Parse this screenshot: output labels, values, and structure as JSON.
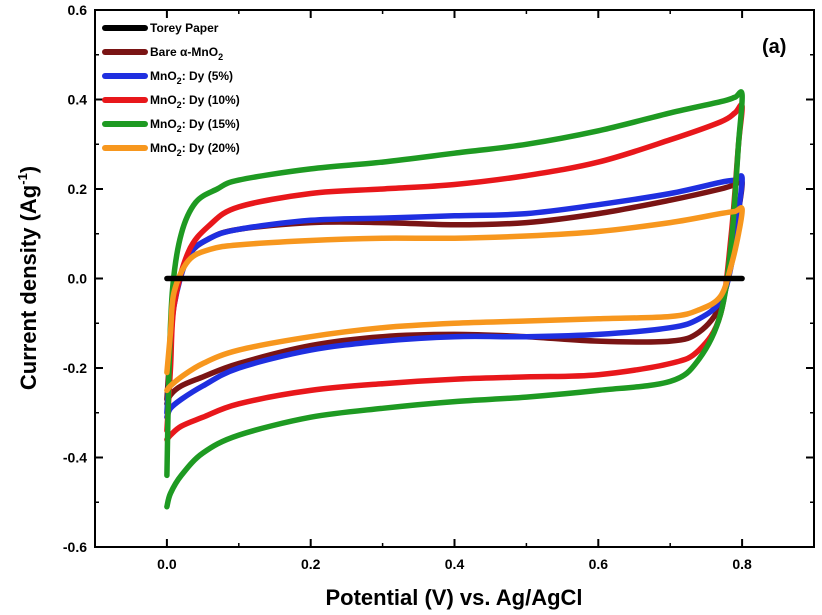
{
  "chart_data": {
    "type": "line",
    "xlabel": "Potential (V) vs. Ag/AgCl",
    "ylabel": "Current density (Ag",
    "ylabel_sup": "-1",
    "panel_label": "(a)",
    "xlim": [
      -0.1,
      0.9
    ],
    "ylim": [
      -0.6,
      0.6
    ],
    "x_ticks": [
      0.0,
      0.2,
      0.4,
      0.6,
      0.8
    ],
    "x_tick_labels": [
      "0.0",
      "0.2",
      "0.4",
      "0.6",
      "0.8"
    ],
    "y_ticks": [
      -0.6,
      -0.4,
      -0.2,
      0.0,
      0.2,
      0.4,
      0.6
    ],
    "y_tick_labels": [
      "-0.6",
      "-0.4",
      "-0.2",
      "0.0",
      "0.2",
      "0.4",
      "0.6"
    ],
    "grid": false,
    "legend_position": "top-left",
    "series": [
      {
        "name": "Torey Paper",
        "color": "#000000",
        "x": [
          0.0,
          0.8
        ],
        "y": [
          0.0,
          0.0
        ]
      },
      {
        "name": "Bare α-MnO2",
        "color": "#7a1414",
        "x": [
          0.0,
          0.005,
          0.01,
          0.03,
          0.06,
          0.1,
          0.2,
          0.3,
          0.4,
          0.5,
          0.6,
          0.7,
          0.77,
          0.79,
          0.8,
          0.795,
          0.785,
          0.77,
          0.74,
          0.7,
          0.6,
          0.5,
          0.4,
          0.3,
          0.2,
          0.1,
          0.05,
          0.02,
          0.005,
          0.0
        ],
        "y": [
          -0.27,
          -0.15,
          -0.05,
          0.05,
          0.09,
          0.11,
          0.125,
          0.125,
          0.12,
          0.125,
          0.145,
          0.175,
          0.2,
          0.21,
          0.215,
          0.15,
          0.04,
          -0.06,
          -0.12,
          -0.14,
          -0.14,
          -0.13,
          -0.125,
          -0.13,
          -0.15,
          -0.19,
          -0.22,
          -0.24,
          -0.26,
          -0.28
        ]
      },
      {
        "name": "MnO2: Dy (5%)",
        "color": "#1f2fe0",
        "x": [
          0.0,
          0.005,
          0.01,
          0.03,
          0.06,
          0.1,
          0.2,
          0.3,
          0.4,
          0.5,
          0.6,
          0.7,
          0.77,
          0.79,
          0.8,
          0.795,
          0.785,
          0.77,
          0.74,
          0.7,
          0.6,
          0.5,
          0.4,
          0.3,
          0.2,
          0.1,
          0.05,
          0.02,
          0.005,
          0.0
        ],
        "y": [
          -0.3,
          -0.17,
          -0.06,
          0.05,
          0.09,
          0.11,
          0.13,
          0.135,
          0.14,
          0.145,
          0.165,
          0.19,
          0.215,
          0.22,
          0.225,
          0.15,
          0.03,
          -0.05,
          -0.09,
          -0.11,
          -0.125,
          -0.13,
          -0.13,
          -0.14,
          -0.16,
          -0.2,
          -0.24,
          -0.27,
          -0.29,
          -0.31
        ]
      },
      {
        "name": "MnO2: Dy (10%)",
        "color": "#e8171b",
        "x": [
          0.0,
          0.005,
          0.01,
          0.03,
          0.06,
          0.1,
          0.2,
          0.3,
          0.4,
          0.5,
          0.6,
          0.7,
          0.77,
          0.79,
          0.8,
          0.795,
          0.785,
          0.77,
          0.74,
          0.7,
          0.6,
          0.5,
          0.4,
          0.3,
          0.2,
          0.1,
          0.05,
          0.02,
          0.005,
          0.0
        ],
        "y": [
          -0.34,
          -0.2,
          -0.06,
          0.06,
          0.12,
          0.16,
          0.19,
          0.2,
          0.21,
          0.23,
          0.26,
          0.31,
          0.35,
          0.37,
          0.385,
          0.3,
          0.1,
          -0.08,
          -0.16,
          -0.19,
          -0.215,
          -0.22,
          -0.225,
          -0.235,
          -0.25,
          -0.28,
          -0.31,
          -0.33,
          -0.35,
          -0.36
        ]
      },
      {
        "name": "MnO2: Dy (15%)",
        "color": "#1e9a22",
        "x": [
          0.0,
          0.003,
          0.008,
          0.02,
          0.04,
          0.07,
          0.1,
          0.2,
          0.3,
          0.4,
          0.5,
          0.6,
          0.7,
          0.77,
          0.79,
          0.8,
          0.795,
          0.785,
          0.77,
          0.74,
          0.7,
          0.6,
          0.5,
          0.4,
          0.3,
          0.2,
          0.1,
          0.05,
          0.02,
          0.005,
          0.0
        ],
        "y": [
          -0.44,
          -0.2,
          -0.02,
          0.1,
          0.17,
          0.2,
          0.22,
          0.245,
          0.26,
          0.28,
          0.3,
          0.33,
          0.37,
          0.395,
          0.405,
          0.41,
          0.3,
          0.08,
          -0.08,
          -0.18,
          -0.23,
          -0.25,
          -0.265,
          -0.275,
          -0.29,
          -0.31,
          -0.35,
          -0.39,
          -0.44,
          -0.48,
          -0.51
        ]
      },
      {
        "name": "MnO2: Dy (20%)",
        "color": "#f7971e",
        "x": [
          0.0,
          0.005,
          0.01,
          0.03,
          0.06,
          0.1,
          0.2,
          0.3,
          0.4,
          0.5,
          0.6,
          0.7,
          0.77,
          0.79,
          0.8,
          0.795,
          0.785,
          0.77,
          0.74,
          0.7,
          0.6,
          0.5,
          0.4,
          0.3,
          0.2,
          0.1,
          0.05,
          0.02,
          0.005,
          0.0
        ],
        "y": [
          -0.21,
          -0.12,
          -0.03,
          0.04,
          0.065,
          0.075,
          0.085,
          0.09,
          0.09,
          0.095,
          0.105,
          0.125,
          0.145,
          0.15,
          0.155,
          0.1,
          0.03,
          -0.04,
          -0.07,
          -0.085,
          -0.09,
          -0.095,
          -0.1,
          -0.11,
          -0.13,
          -0.16,
          -0.19,
          -0.22,
          -0.24,
          -0.25
        ]
      }
    ]
  },
  "legend": [
    {
      "name": "Torey Paper",
      "color": "#000000"
    },
    {
      "name": "Bare α-MnO2",
      "color": "#7a1414"
    },
    {
      "name": "MnO2: Dy (5%)",
      "color": "#1f2fe0"
    },
    {
      "name": "MnO2: Dy (10%)",
      "color": "#e8171b"
    },
    {
      "name": "MnO2: Dy (15%)",
      "color": "#1e9a22"
    },
    {
      "name": "MnO2: Dy (20%)",
      "color": "#f7971e"
    }
  ]
}
